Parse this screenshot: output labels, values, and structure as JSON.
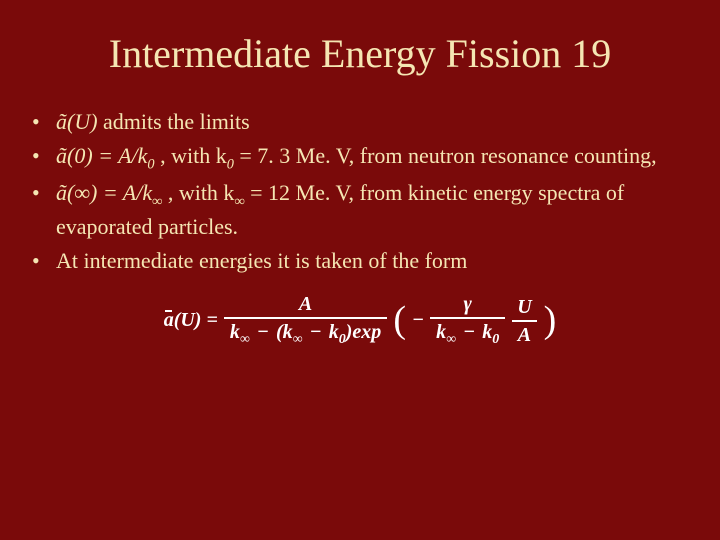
{
  "colors": {
    "background": "#7a0a0a",
    "body_text": "#f5e6b3",
    "formula_text": "#ffffff"
  },
  "title": "Intermediate Energy Fission 19",
  "bullets": {
    "b1": {
      "aU": "ã(U)",
      "rest": "  admits the  limits"
    },
    "b2": {
      "a0": "ã(0)  = A/k",
      "k0sub": "0",
      "mid": " , with  k",
      "k0sub2": "0",
      "rest": " = 7. 3 Me. V, from neutron resonance counting,"
    },
    "b3": {
      "ainf": "ã(∞)  = A/k",
      "kinfsub": "∞",
      "mid": " , with k",
      "kinfsub2": "∞",
      "rest": " = 12 Me. V, from kinetic energy spectra of evaporated particles."
    },
    "b4": {
      "text": "At intermediate energies it is taken of the form"
    }
  },
  "formula": {
    "lhs_a": "a",
    "lhs_U": "(U) =",
    "num1": "A",
    "den1_kinf": "k",
    "den1_kinf_sub": "∞",
    "minus1": "−",
    "den1_lp": "(",
    "den1_kinf2": "k",
    "den1_kinf2_sub": "∞",
    "minus2": "−",
    "den1_k0": "k",
    "den1_k0_sub": "0",
    "den1_rp": ")",
    "exp": "exp",
    "big_lp": "(",
    "neg": "−",
    "num2_g": "γ",
    "den2_kinf": "k",
    "den2_kinf_sub": "∞",
    "minus3": "−",
    "den2_k0": "k",
    "den2_k0_sub": "0",
    "num3_U": "U",
    "den3_A": "A",
    "big_rp": ")"
  },
  "typography": {
    "title_fontsize": 40,
    "body_fontsize": 22,
    "formula_fontsize": 20
  }
}
